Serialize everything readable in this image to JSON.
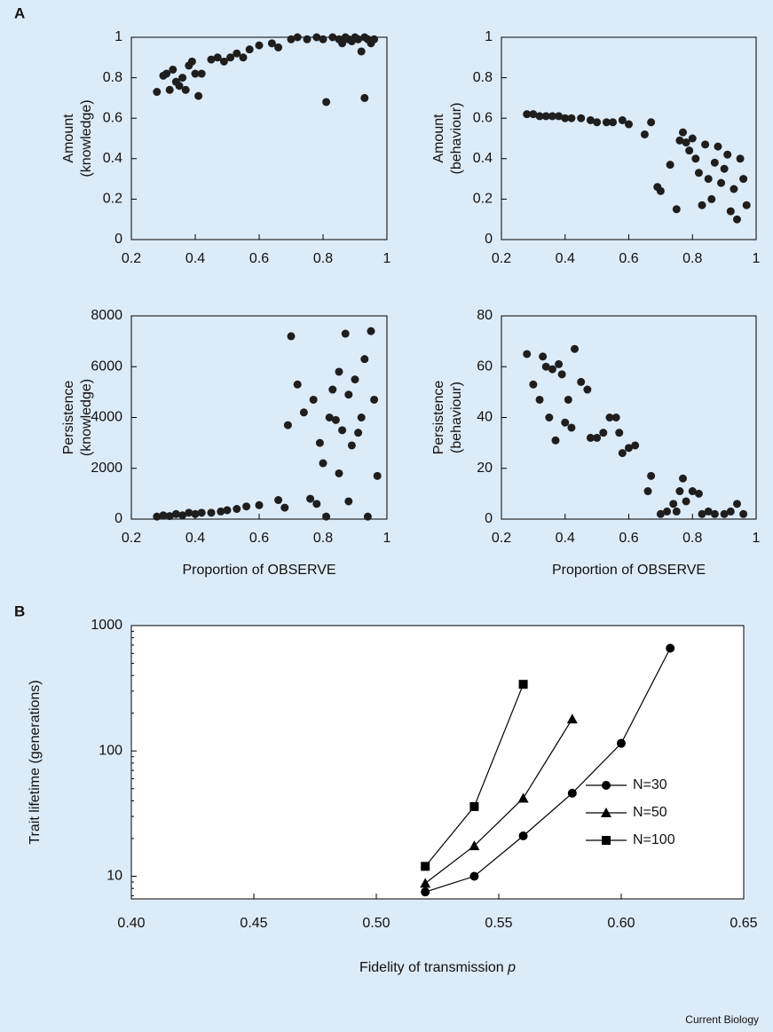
{
  "panels": [
    "A",
    "B"
  ],
  "credit": "Current Biology",
  "chart_data": [
    {
      "type": "scatter",
      "ylabel": [
        "Amount",
        "(knowledge)"
      ],
      "color": "#1e1e1e",
      "x": [
        0.28,
        0.3,
        0.31,
        0.32,
        0.33,
        0.34,
        0.35,
        0.36,
        0.37,
        0.38,
        0.39,
        0.4,
        0.41,
        0.42,
        0.45,
        0.47,
        0.49,
        0.51,
        0.53,
        0.55,
        0.57,
        0.6,
        0.64,
        0.66,
        0.7,
        0.72,
        0.75,
        0.78,
        0.8,
        0.81,
        0.83,
        0.85,
        0.86,
        0.87,
        0.88,
        0.89,
        0.9,
        0.91,
        0.92,
        0.93,
        0.94,
        0.95,
        0.96,
        0.93
      ],
      "values": [
        0.73,
        0.81,
        0.82,
        0.74,
        0.84,
        0.78,
        0.76,
        0.8,
        0.74,
        0.86,
        0.88,
        0.82,
        0.71,
        0.82,
        0.89,
        0.9,
        0.88,
        0.9,
        0.92,
        0.9,
        0.94,
        0.96,
        0.97,
        0.95,
        0.99,
        1.0,
        0.99,
        1.0,
        0.99,
        0.68,
        1.0,
        0.99,
        0.97,
        1.0,
        0.99,
        0.98,
        1.0,
        0.99,
        0.93,
        1.0,
        0.99,
        0.97,
        0.99,
        0.7
      ],
      "xlim": [
        0.2,
        1
      ],
      "xticks": [
        0.2,
        0.4,
        0.6,
        0.8,
        1
      ],
      "ylim": [
        0,
        1
      ],
      "yticks": [
        0,
        0.2,
        0.4,
        0.6,
        0.8,
        1
      ]
    },
    {
      "type": "scatter",
      "ylabel": [
        "Amount",
        "(behaviour)"
      ],
      "color": "#1e1e1e",
      "x": [
        0.28,
        0.3,
        0.32,
        0.34,
        0.36,
        0.38,
        0.4,
        0.42,
        0.45,
        0.48,
        0.5,
        0.53,
        0.55,
        0.58,
        0.6,
        0.65,
        0.67,
        0.69,
        0.7,
        0.73,
        0.75,
        0.76,
        0.77,
        0.78,
        0.79,
        0.8,
        0.81,
        0.82,
        0.83,
        0.84,
        0.85,
        0.86,
        0.87,
        0.88,
        0.89,
        0.9,
        0.91,
        0.92,
        0.93,
        0.94,
        0.95,
        0.96,
        0.97
      ],
      "values": [
        0.62,
        0.62,
        0.61,
        0.61,
        0.61,
        0.61,
        0.6,
        0.6,
        0.6,
        0.59,
        0.58,
        0.58,
        0.58,
        0.59,
        0.57,
        0.52,
        0.58,
        0.26,
        0.24,
        0.37,
        0.15,
        0.49,
        0.53,
        0.48,
        0.44,
        0.5,
        0.4,
        0.33,
        0.17,
        0.47,
        0.3,
        0.2,
        0.38,
        0.46,
        0.28,
        0.35,
        0.42,
        0.14,
        0.25,
        0.1,
        0.4,
        0.3,
        0.17
      ],
      "xlim": [
        0.2,
        1
      ],
      "xticks": [
        0.2,
        0.4,
        0.6,
        0.8,
        1
      ],
      "ylim": [
        0,
        1
      ],
      "yticks": [
        0,
        0.2,
        0.4,
        0.6,
        0.8,
        1
      ]
    },
    {
      "type": "scatter",
      "ylabel": [
        "Persistence",
        "(knowledge)"
      ],
      "xlabel": "Proportion of OBSERVE",
      "color": "#1e1e1e",
      "x": [
        0.28,
        0.3,
        0.32,
        0.34,
        0.36,
        0.38,
        0.4,
        0.42,
        0.45,
        0.48,
        0.5,
        0.53,
        0.56,
        0.6,
        0.66,
        0.68,
        0.7,
        0.69,
        0.72,
        0.74,
        0.76,
        0.77,
        0.78,
        0.79,
        0.8,
        0.81,
        0.82,
        0.83,
        0.84,
        0.85,
        0.86,
        0.87,
        0.88,
        0.89,
        0.9,
        0.91,
        0.92,
        0.93,
        0.94,
        0.95,
        0.96,
        0.97,
        0.85,
        0.88
      ],
      "values": [
        100,
        150,
        120,
        200,
        150,
        250,
        200,
        250,
        250,
        300,
        350,
        400,
        500,
        550,
        750,
        450,
        7200,
        3700,
        5300,
        4200,
        800,
        4700,
        600,
        3000,
        2200,
        100,
        4000,
        5100,
        3900,
        1800,
        3500,
        7300,
        4900,
        2900,
        5500,
        3400,
        4000,
        6300,
        100,
        7400,
        4700,
        1700,
        5800,
        700
      ],
      "xlim": [
        0.2,
        1
      ],
      "xticks": [
        0.2,
        0.4,
        0.6,
        0.8,
        1
      ],
      "ylim": [
        0,
        8000
      ],
      "yticks": [
        0,
        2000,
        4000,
        6000,
        8000
      ]
    },
    {
      "type": "scatter",
      "ylabel": [
        "Persistence",
        "(behaviour)"
      ],
      "xlabel": "Proportion of OBSERVE",
      "color": "#1e1e1e",
      "x": [
        0.28,
        0.3,
        0.32,
        0.33,
        0.34,
        0.35,
        0.36,
        0.37,
        0.38,
        0.39,
        0.4,
        0.41,
        0.42,
        0.43,
        0.45,
        0.47,
        0.48,
        0.5,
        0.52,
        0.54,
        0.56,
        0.57,
        0.58,
        0.6,
        0.62,
        0.66,
        0.67,
        0.7,
        0.72,
        0.74,
        0.75,
        0.76,
        0.77,
        0.78,
        0.8,
        0.82,
        0.83,
        0.85,
        0.87,
        0.9,
        0.92,
        0.94,
        0.96
      ],
      "values": [
        65,
        53,
        47,
        64,
        60,
        40,
        59,
        31,
        61,
        57,
        38,
        47,
        36,
        67,
        54,
        51,
        32,
        32,
        34,
        40,
        40,
        34,
        26,
        28,
        29,
        11,
        17,
        2,
        3,
        6,
        3,
        11,
        16,
        7,
        11,
        10,
        2,
        3,
        2,
        2,
        3,
        6,
        2
      ],
      "xlim": [
        0.2,
        1
      ],
      "xticks": [
        0.2,
        0.4,
        0.6,
        0.8,
        1
      ],
      "ylim": [
        0,
        80
      ],
      "yticks": [
        0,
        20,
        40,
        60,
        80
      ]
    },
    {
      "type": "line",
      "ylabel": "Trait lifetime (generations)",
      "xlabel": [
        "Fidelity of transmission",
        "p"
      ],
      "log_y": true,
      "legend": "lower right",
      "series": [
        {
          "name": "N=30",
          "marker": "circle",
          "color": "#000000",
          "x": [
            0.52,
            0.54,
            0.56,
            0.58,
            0.6,
            0.62
          ],
          "values": [
            7.5,
            10,
            21,
            46,
            115,
            660
          ]
        },
        {
          "name": "N=50",
          "marker": "triangle",
          "color": "#000000",
          "x": [
            0.52,
            0.54,
            0.56,
            0.58
          ],
          "values": [
            8.8,
            17.5,
            42,
            180
          ]
        },
        {
          "name": "N=100",
          "marker": "square",
          "color": "#000000",
          "x": [
            0.52,
            0.54,
            0.56
          ],
          "values": [
            12,
            36,
            340
          ]
        }
      ],
      "xlim": [
        0.4,
        0.65
      ],
      "xticks": [
        {
          "value": 0.4,
          "label": "0.40"
        },
        {
          "value": 0.45,
          "label": "0.45"
        },
        {
          "value": 0.5,
          "label": "0.50"
        },
        {
          "value": 0.55,
          "label": "0.55"
        },
        {
          "value": 0.6,
          "label": "0.60"
        },
        {
          "value": 0.65,
          "label": "0.65"
        }
      ],
      "ylim": [
        6.6,
        1000
      ],
      "yticks": [
        10,
        100,
        1000
      ]
    }
  ]
}
